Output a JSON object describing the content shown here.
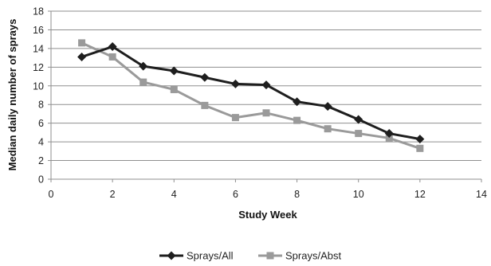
{
  "chart_data": {
    "type": "line",
    "xlabel": "Study Week",
    "ylabel": "Median daily number of sprays",
    "xlim": [
      0,
      14
    ],
    "ylim": [
      0,
      18
    ],
    "x_ticks": [
      0,
      2,
      4,
      6,
      8,
      10,
      12,
      14
    ],
    "y_ticks": [
      0,
      2,
      4,
      6,
      8,
      10,
      12,
      14,
      16,
      18
    ],
    "grid": "horizontal",
    "legend_position": "bottom",
    "series": [
      {
        "name": "Sprays/All",
        "color": "#1e1e1e",
        "marker": "diamond",
        "x": [
          1,
          2,
          3,
          4,
          5,
          6,
          7,
          8,
          9,
          10,
          11,
          12
        ],
        "y": [
          13.1,
          14.2,
          12.1,
          11.6,
          10.9,
          10.2,
          10.1,
          8.3,
          7.8,
          6.4,
          4.9,
          4.3
        ]
      },
      {
        "name": "Sprays/Abst",
        "color": "#9a9a9a",
        "marker": "square",
        "x": [
          1,
          2,
          3,
          4,
          5,
          6,
          7,
          8,
          9,
          10,
          11,
          12
        ],
        "y": [
          14.6,
          13.1,
          10.4,
          9.6,
          7.9,
          6.6,
          7.1,
          6.3,
          5.4,
          4.9,
          4.4,
          3.3
        ]
      }
    ]
  }
}
